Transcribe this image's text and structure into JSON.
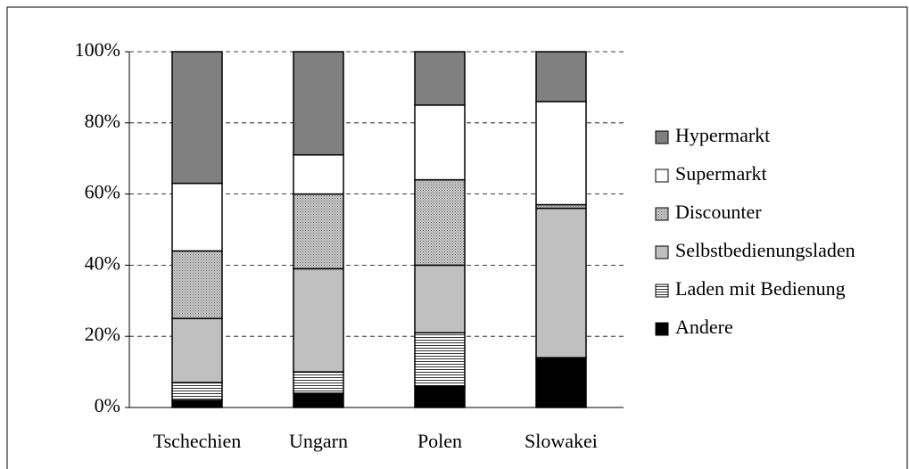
{
  "chart_data": {
    "type": "stacked_bar",
    "categories": [
      "Tschechien",
      "Ungarn",
      "Polen",
      "Slowakei"
    ],
    "series": [
      {
        "name": "Andere",
        "color": "#000000",
        "values": [
          2,
          4,
          6,
          14
        ]
      },
      {
        "name": "Laden mit Bedienung",
        "color": "#ffffff",
        "pattern": "hlines",
        "values": [
          5,
          6,
          15,
          0
        ]
      },
      {
        "name": "Selbstbedienungsladen",
        "color": "#c0c0c0",
        "values": [
          18,
          29,
          19,
          42
        ]
      },
      {
        "name": "Discounter",
        "color": "#b0b0b0",
        "pattern": "dots",
        "values": [
          19,
          21,
          24,
          1
        ]
      },
      {
        "name": "Supermarkt",
        "color": "#ffffff",
        "values": [
          19,
          11,
          21,
          29
        ]
      },
      {
        "name": "Hypermarkt",
        "color": "#808080",
        "values": [
          37,
          29,
          15,
          14
        ]
      }
    ],
    "ylim": [
      0,
      100
    ],
    "yticks": [
      {
        "value": 0,
        "label": "0%"
      },
      {
        "value": 20,
        "label": "20%"
      },
      {
        "value": 40,
        "label": "40%"
      },
      {
        "value": 60,
        "label": "60%"
      },
      {
        "value": 80,
        "label": "80%"
      },
      {
        "value": 100,
        "label": "100%"
      }
    ],
    "grid": true,
    "legend": "right"
  }
}
